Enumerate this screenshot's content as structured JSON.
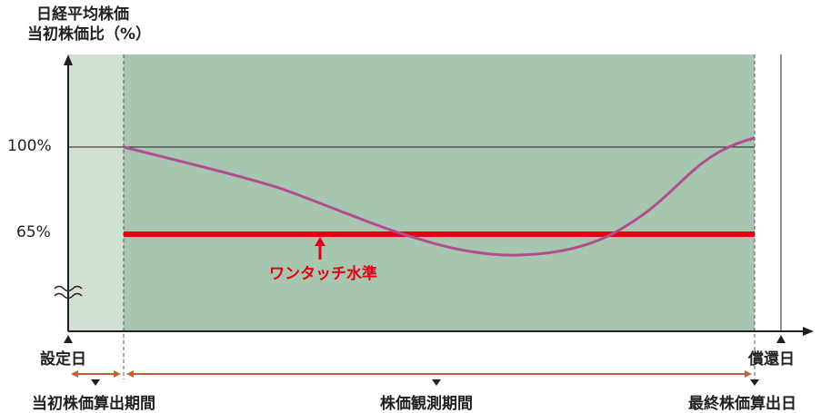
{
  "y_axis": {
    "label_line1": "日経平均株価",
    "label_line2": "当初株価比（%）",
    "ticks": [
      "100%",
      "65%"
    ],
    "break_mark": "≈"
  },
  "markers": {
    "start": "設定日",
    "end": "償還日"
  },
  "periods": {
    "initial": "当初株価算出期間",
    "observation": "株価観測期間",
    "final": "最終株価算出日"
  },
  "one_touch": {
    "label": "ワンタッチ水準",
    "level_pct": 65
  },
  "colors": {
    "initial_zone": "#d2e0d4",
    "observation_zone": "#a6c6b0",
    "price_line": "#b34d8f",
    "one_touch_line": "#e60012",
    "period_arrow": "#c4602b"
  }
}
